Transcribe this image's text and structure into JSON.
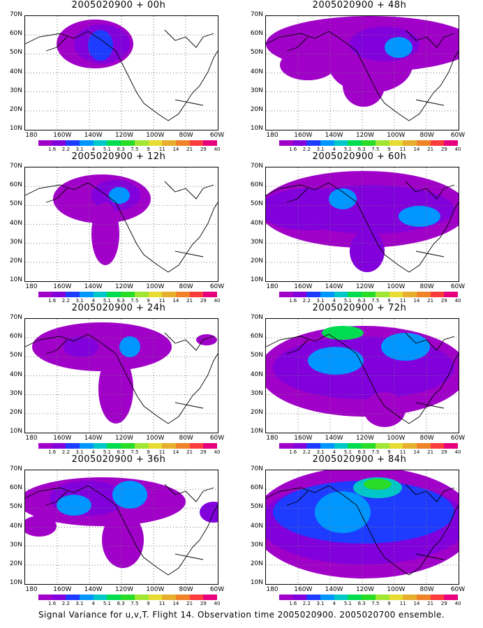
{
  "panels": [
    {
      "title": "2005020900 + 00h"
    },
    {
      "title": "2005020900 + 48h"
    },
    {
      "title": "2005020900 + 12h"
    },
    {
      "title": "2005020900 + 60h"
    },
    {
      "title": "2005020900 + 24h"
    },
    {
      "title": "2005020900 + 72h"
    },
    {
      "title": "2005020900 + 36h"
    },
    {
      "title": "2005020900 + 84h"
    }
  ],
  "lat_labels": [
    "70N",
    "60N",
    "50N",
    "40N",
    "30N",
    "20N",
    "10N"
  ],
  "lon_labels": [
    "180",
    "160W",
    "140W",
    "120W",
    "100W",
    "80W",
    "60W"
  ],
  "colorbar": {
    "labels": [
      "1.6",
      "2.2",
      "3.1",
      "4",
      "5.1",
      "6.3",
      "7.5",
      "9",
      "11",
      "14",
      "21",
      "29",
      "40"
    ],
    "colors": [
      "#a000c8",
      "#8200dc",
      "#1e3cff",
      "#0096ff",
      "#00c8c8",
      "#00dc50",
      "#28dc28",
      "#a0e632",
      "#e6dc32",
      "#e6af2d",
      "#f08228",
      "#fa3c3c",
      "#e6007d"
    ]
  },
  "caption": "Signal Variance for u,v,T. Flight 14. Observation time 2005020900. 2005020700 ensemble."
}
